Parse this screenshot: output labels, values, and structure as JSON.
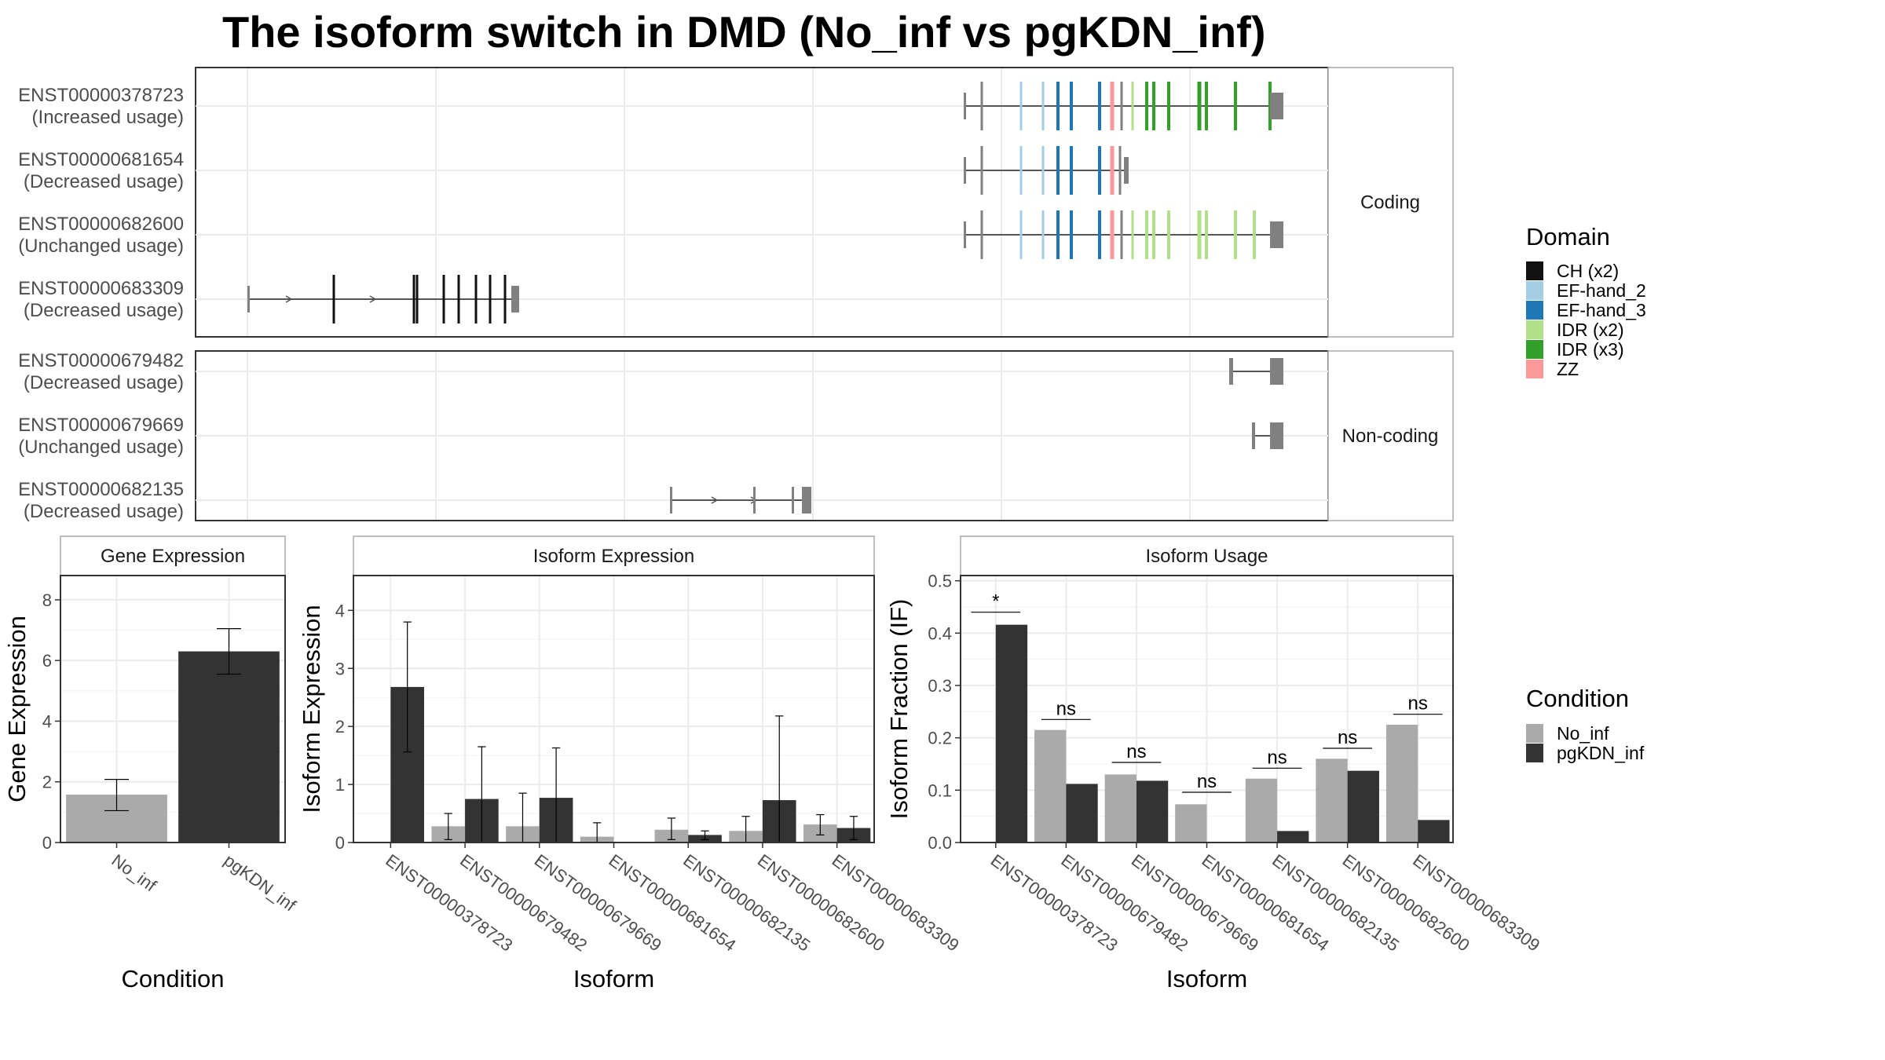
{
  "title": "The isoform switch in DMD (No_inf vs pgKDN_inf)",
  "structure": {
    "coding_strip": "Coding",
    "noncoding_strip": "Non-coding",
    "coding_isoforms": [
      {
        "id": "ENST00000378723",
        "usage": "(Increased usage)"
      },
      {
        "id": "ENST00000681654",
        "usage": "(Decreased usage)"
      },
      {
        "id": "ENST00000682600",
        "usage": "(Unchanged usage)"
      },
      {
        "id": "ENST00000683309",
        "usage": "(Decreased usage)"
      }
    ],
    "noncoding_isoforms": [
      {
        "id": "ENST00000679482",
        "usage": "(Decreased usage)"
      },
      {
        "id": "ENST00000679669",
        "usage": "(Unchanged usage)"
      },
      {
        "id": "ENST00000682135",
        "usage": "(Decreased usage)"
      }
    ]
  },
  "domain_legend": {
    "title": "Domain",
    "items": [
      {
        "label": "CH (x2)",
        "color": "#111111"
      },
      {
        "label": "EF-hand_2",
        "color": "#a6cee3"
      },
      {
        "label": "EF-hand_3",
        "color": "#1f78b4"
      },
      {
        "label": "IDR (x2)",
        "color": "#b2df8a"
      },
      {
        "label": "IDR (x3)",
        "color": "#33a02c"
      },
      {
        "label": "ZZ",
        "color": "#fb9a99"
      }
    ]
  },
  "condition_legend": {
    "title": "Condition",
    "items": [
      {
        "label": "No_inf",
        "color": "#aaaaaa"
      },
      {
        "label": "pgKDN_inf",
        "color": "#333333"
      }
    ]
  },
  "chart_data": [
    {
      "type": "bar",
      "panel": "Gene Expression",
      "xlabel": "Condition",
      "ylabel": "Gene Expression",
      "categories": [
        "No_inf",
        "pgKDN_inf"
      ],
      "values": [
        1.58,
        6.3
      ],
      "errors": [
        [
          1.05,
          2.08
        ],
        [
          5.55,
          7.05
        ]
      ],
      "colors": [
        "#aaaaaa",
        "#333333"
      ],
      "ylim": [
        0,
        8.8
      ],
      "yticks": [
        0,
        2,
        4,
        6,
        8
      ]
    },
    {
      "type": "bar",
      "panel": "Isoform Expression",
      "xlabel": "Isoform",
      "ylabel": "Isoform Expression",
      "categories": [
        "ENST00000378723",
        "ENST00000679482",
        "ENST00000679669",
        "ENST00000681654",
        "ENST00000682135",
        "ENST00000682600",
        "ENST00000683309"
      ],
      "series": [
        {
          "name": "No_inf",
          "color": "#aaaaaa",
          "values": [
            0.0,
            0.28,
            0.28,
            0.1,
            0.22,
            0.2,
            0.31
          ],
          "errors": [
            [
              0.0,
              0.0
            ],
            [
              0.05,
              0.5
            ],
            [
              0.0,
              0.85
            ],
            [
              0.0,
              0.34
            ],
            [
              0.05,
              0.42
            ],
            [
              0.0,
              0.45
            ],
            [
              0.13,
              0.48
            ]
          ]
        },
        {
          "name": "pgKDN_inf",
          "color": "#333333",
          "values": [
            2.68,
            0.75,
            0.77,
            0.0,
            0.13,
            0.73,
            0.25
          ],
          "errors": [
            [
              1.56,
              3.8
            ],
            [
              0.0,
              1.65
            ],
            [
              0.0,
              1.63
            ],
            [
              0.0,
              0.0
            ],
            [
              0.05,
              0.2
            ],
            [
              0.0,
              2.18
            ],
            [
              0.05,
              0.45
            ]
          ]
        }
      ],
      "ylim": [
        0,
        4.6
      ],
      "yticks": [
        0,
        1,
        2,
        3,
        4
      ]
    },
    {
      "type": "bar",
      "panel": "Isoform Usage",
      "xlabel": "Isoform",
      "ylabel": "Isoform Fraction (IF)",
      "categories": [
        "ENST00000378723",
        "ENST00000679482",
        "ENST00000679669",
        "ENST00000681654",
        "ENST00000682135",
        "ENST00000682600",
        "ENST00000683309"
      ],
      "series": [
        {
          "name": "No_inf",
          "color": "#aaaaaa",
          "values": [
            0.0,
            0.215,
            0.13,
            0.073,
            0.122,
            0.16,
            0.225
          ]
        },
        {
          "name": "pgKDN_inf",
          "color": "#333333",
          "values": [
            0.416,
            0.112,
            0.118,
            0.0,
            0.022,
            0.137,
            0.043
          ]
        }
      ],
      "significance": [
        "*",
        "ns",
        "ns",
        "ns",
        "ns",
        "ns",
        "ns"
      ],
      "significance_y": [
        0.44,
        0.235,
        0.153,
        0.096,
        0.142,
        0.18,
        0.245
      ],
      "ylim": [
        0,
        0.51
      ],
      "yticks": [
        "0.0",
        "0.1",
        "0.2",
        "0.3",
        "0.4",
        "0.5"
      ]
    }
  ]
}
